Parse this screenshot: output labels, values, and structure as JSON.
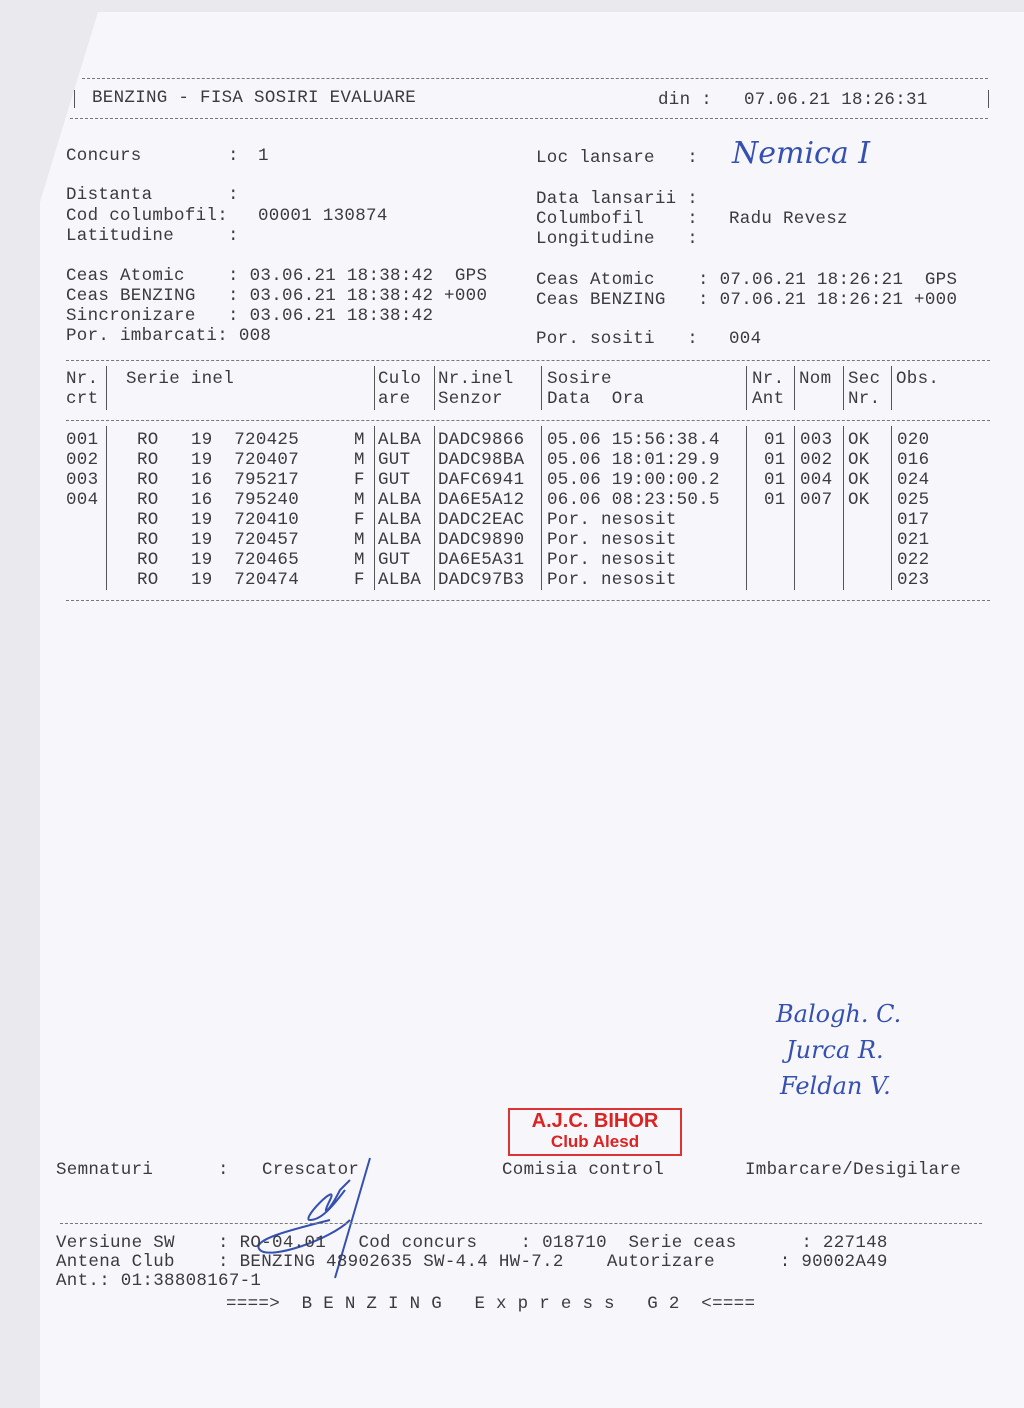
{
  "header": {
    "title": "BENZING - FISA SOSIRI EVALUARE",
    "din_label": "din :",
    "din_value": "07.06.21 18:26:31"
  },
  "info": {
    "concurs_label": "Concurs        :",
    "concurs": "1",
    "loc_lansare_label": "Loc lansare   :",
    "loc_lansare": "Nemica I",
    "distanta_label": "Distanta       :",
    "data_lansarii_label": "Data lansarii :",
    "cod_columbofil_label": "Cod columbofil:",
    "cod_columbofil": "00001 130874",
    "columbofil_label": "Columbofil    :",
    "columbofil": "Radu Revesz",
    "latitudine_label": "Latitudine     :",
    "longitudine_label": "Longitudine   :",
    "left_clock": [
      "Ceas Atomic    : 03.06.21 18:38:42  GPS",
      "Ceas BENZING   : 03.06.21 18:38:42 +000",
      "Sincronizare   : 03.06.21 18:38:42",
      "Por. imbarcati: 008"
    ],
    "right_clock": [
      "Ceas Atomic    : 07.06.21 18:26:21  GPS",
      "Ceas BENZING   : 07.06.21 18:26:21 +000"
    ],
    "por_sositi_label": "Por. sositi   :",
    "por_sositi": "004"
  },
  "table": {
    "headers": [
      [
        "Nr.",
        "crt"
      ],
      [
        "Serie inel",
        ""
      ],
      [
        "Culo",
        "are"
      ],
      [
        "Nr.inel",
        "Senzor"
      ],
      [
        "Sosire",
        "Data  Ora"
      ],
      [
        "Nr.",
        "Ant"
      ],
      [
        "Nom",
        ""
      ],
      [
        "Sec",
        "Nr."
      ],
      [
        "Obs.",
        ""
      ]
    ],
    "rows": [
      {
        "nr": "001",
        "serie": "RO   19  720425",
        "sex": "M",
        "culoare": "ALBA",
        "senzor": "DADC9866",
        "sosire": "05.06 15:56:38.4",
        "ant": "01",
        "nom": "003",
        "sec": "OK",
        "obs": "020"
      },
      {
        "nr": "002",
        "serie": "RO   19  720407",
        "sex": "M",
        "culoare": "GUT",
        "senzor": "DADC98BA",
        "sosire": "05.06 18:01:29.9",
        "ant": "01",
        "nom": "002",
        "sec": "OK",
        "obs": "016"
      },
      {
        "nr": "003",
        "serie": "RO   16  795217",
        "sex": "F",
        "culoare": "GUT",
        "senzor": "DAFC6941",
        "sosire": "05.06 19:00:00.2",
        "ant": "01",
        "nom": "004",
        "sec": "OK",
        "obs": "024"
      },
      {
        "nr": "004",
        "serie": "RO   16  795240",
        "sex": "M",
        "culoare": "ALBA",
        "senzor": "DA6E5A12",
        "sosire": "06.06 08:23:50.5",
        "ant": "01",
        "nom": "007",
        "sec": "OK",
        "obs": "025"
      },
      {
        "nr": "",
        "serie": "RO   19  720410",
        "sex": "F",
        "culoare": "ALBA",
        "senzor": "DADC2EAC",
        "sosire": "Por. nesosit",
        "ant": "",
        "nom": "",
        "sec": "",
        "obs": "017"
      },
      {
        "nr": "",
        "serie": "RO   19  720457",
        "sex": "M",
        "culoare": "ALBA",
        "senzor": "DADC9890",
        "sosire": "Por. nesosit",
        "ant": "",
        "nom": "",
        "sec": "",
        "obs": "021"
      },
      {
        "nr": "",
        "serie": "RO   19  720465",
        "sex": "M",
        "culoare": "GUT",
        "senzor": "DA6E5A31",
        "sosire": "Por. nesosit",
        "ant": "",
        "nom": "",
        "sec": "",
        "obs": "022"
      },
      {
        "nr": "",
        "serie": "RO   19  720474",
        "sex": "F",
        "culoare": "ALBA",
        "senzor": "DADC97B3",
        "sosire": "Por. nesosit",
        "ant": "",
        "nom": "",
        "sec": "",
        "obs": "023"
      }
    ]
  },
  "signatures": {
    "label": "Semnaturi      :",
    "crescator": "Crescator",
    "comisia": "Comisia control",
    "imbarcare": "Imbarcare/Desigilare",
    "handwritten": [
      "Balogh. C.",
      "Jurca R.",
      "Feldan V."
    ],
    "stamp": [
      "A.J.C. BIHOR",
      "Club Alesd"
    ],
    "stamp_color": "#dd2222",
    "ink_color": "#3550b0"
  },
  "footer": {
    "line1": "Versiune SW    : RO-04.01   Cod concurs    : 018710  Serie ceas      : 227148",
    "line2": "Antena Club    : BENZING 48902635 SW-4.4 HW-7.2    Autorizare      : 90002A49",
    "line3": "Ant.: 01:38808167-1",
    "brand": "====>  B E N Z I N G   E x p r e s s   G 2  <===="
  }
}
